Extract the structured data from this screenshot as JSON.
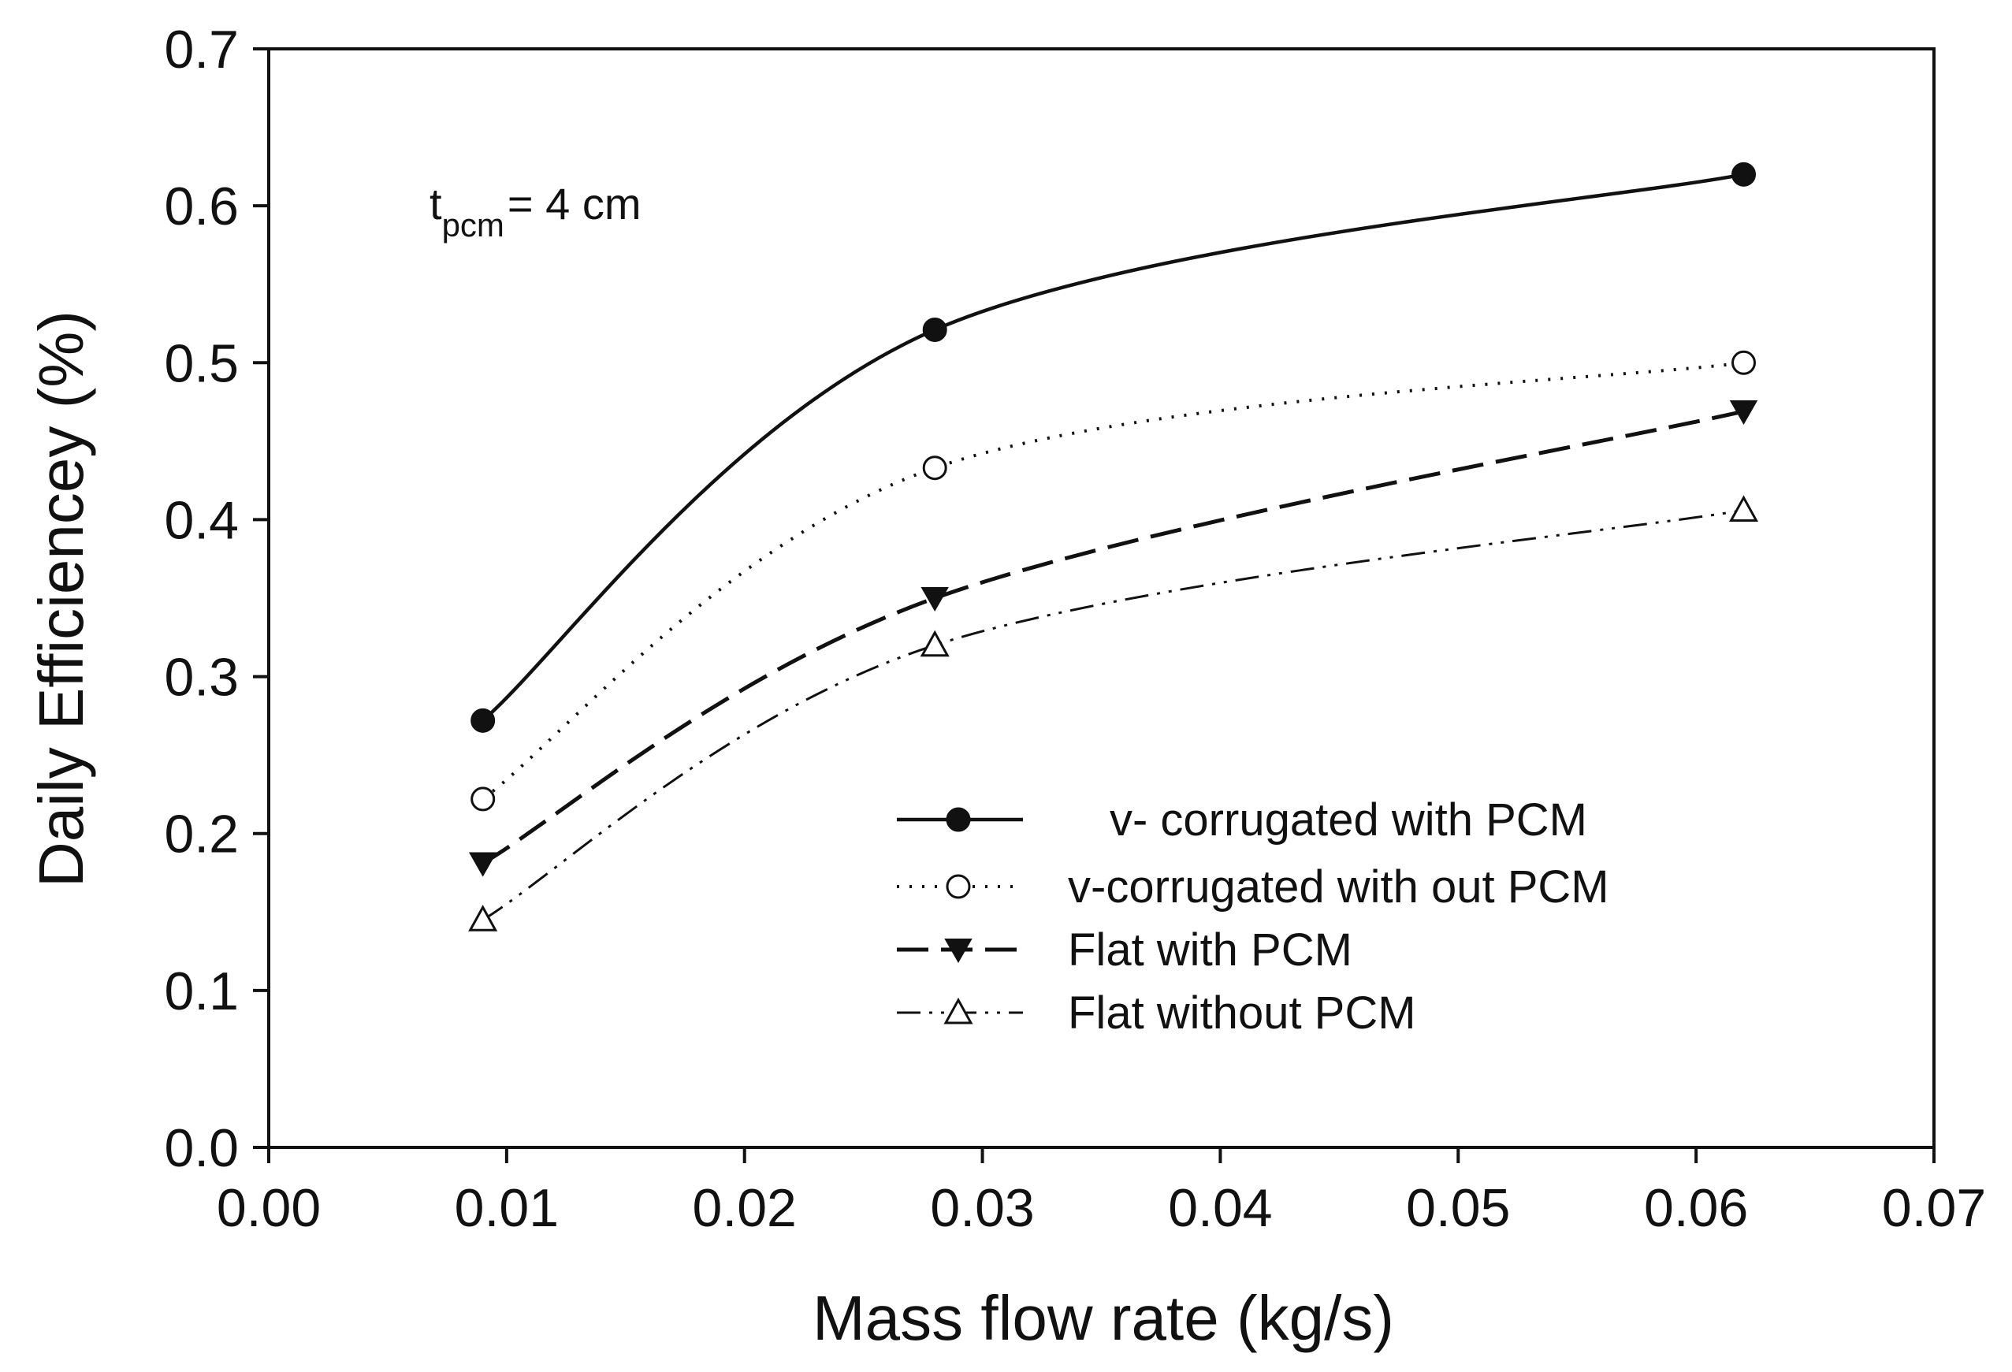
{
  "chart_data": {
    "type": "line",
    "title": "",
    "xlabel": "Mass flow rate (kg/s)",
    "ylabel": "Daily Efficiencey (%)",
    "xlim": [
      0.0,
      0.07
    ],
    "ylim": [
      0.0,
      0.7
    ],
    "x_ticks": [
      0.0,
      0.01,
      0.02,
      0.03,
      0.04,
      0.05,
      0.06,
      0.07
    ],
    "x_tick_labels": [
      "0.00",
      "0.01",
      "0.02",
      "0.03",
      "0.04",
      "0.05",
      "0.06",
      "0.07"
    ],
    "y_ticks": [
      0.0,
      0.1,
      0.2,
      0.3,
      0.4,
      0.5,
      0.6,
      0.7
    ],
    "y_tick_labels": [
      "0.0",
      "0.1",
      "0.2",
      "0.3",
      "0.4",
      "0.5",
      "0.6",
      "0.7"
    ],
    "grid": false,
    "legend_position": "lower-right",
    "annotation": {
      "main": "t",
      "sub": "pcm",
      "rest": "= 4 cm"
    },
    "x": [
      0.009,
      0.028,
      0.062
    ],
    "series": [
      {
        "name": "v- corrugated with PCM",
        "values": [
          0.272,
          0.521,
          0.62
        ],
        "line_style": "solid",
        "marker": "filled-circle"
      },
      {
        "name": "v-corrugated with out PCM",
        "values": [
          0.222,
          0.433,
          0.5
        ],
        "line_style": "dotted",
        "marker": "open-circle"
      },
      {
        "name": "Flat with PCM",
        "values": [
          0.181,
          0.35,
          0.469
        ],
        "line_style": "dashed",
        "marker": "filled-triangle-down"
      },
      {
        "name": "Flat without PCM",
        "values": [
          0.145,
          0.32,
          0.406
        ],
        "line_style": "dash-dot-dot",
        "marker": "open-triangle-up"
      }
    ]
  }
}
